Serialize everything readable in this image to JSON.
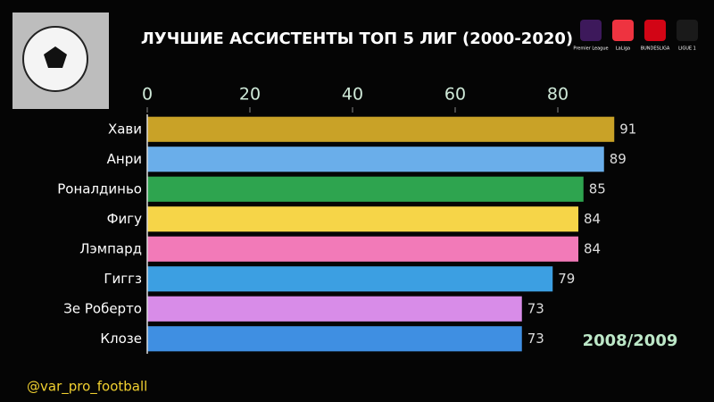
{
  "chart_data": {
    "type": "bar",
    "orientation": "horizontal",
    "title": "ЛУЧШИЕ АССИСТЕНТЫ ТОП 5 ЛИГ (2000-2020)",
    "categories": [
      "Хави",
      "Анри",
      "Роналдиньо",
      "Фигу",
      "Лэмпард",
      "Гиггз",
      "Зе Роберто",
      "Клозе"
    ],
    "values": [
      91,
      89,
      85,
      84,
      84,
      79,
      73,
      73
    ],
    "colors": [
      "#c9a227",
      "#6aaeea",
      "#2ea44f",
      "#f6d548",
      "#f27ab8",
      "#3c9fe2",
      "#d88ce8",
      "#3f8fe2"
    ],
    "xlim": [
      0,
      100
    ],
    "xticks": [
      0,
      20,
      40,
      60,
      80
    ],
    "annotations": [
      "2008/2009",
      "@var_pro_football"
    ],
    "logos": [
      "Premier League",
      "LaLiga",
      "BUNDESLIGA",
      "LIGUE 1"
    ]
  }
}
